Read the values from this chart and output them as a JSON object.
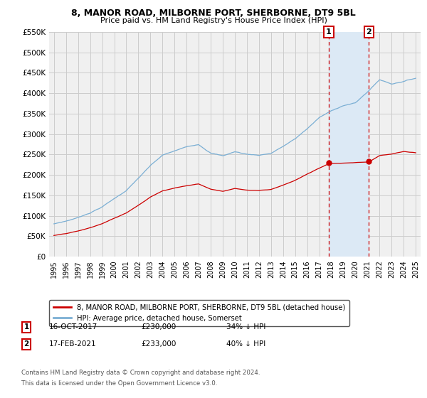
{
  "title": "8, MANOR ROAD, MILBORNE PORT, SHERBORNE, DT9 5BL",
  "subtitle": "Price paid vs. HM Land Registry's House Price Index (HPI)",
  "ylim": [
    0,
    550000
  ],
  "yticks": [
    0,
    50000,
    100000,
    150000,
    200000,
    250000,
    300000,
    350000,
    400000,
    450000,
    500000,
    550000
  ],
  "ytick_labels": [
    "£0",
    "£50K",
    "£100K",
    "£150K",
    "£200K",
    "£250K",
    "£300K",
    "£350K",
    "£400K",
    "£450K",
    "£500K",
    "£550K"
  ],
  "hpi_color": "#7bafd4",
  "price_color": "#cc0000",
  "shade_color": "#dce9f5",
  "sale1_year": 2017.79,
  "sale1_price": 230000,
  "sale2_year": 2021.12,
  "sale2_price": 233000,
  "sale1_date": "16-OCT-2017",
  "sale1_hpi_pct": "34% ↓ HPI",
  "sale2_date": "17-FEB-2021",
  "sale2_hpi_pct": "40% ↓ HPI",
  "legend_line1": "8, MANOR ROAD, MILBORNE PORT, SHERBORNE, DT9 5BL (detached house)",
  "legend_line2": "HPI: Average price, detached house, Somerset",
  "footnote1": "Contains HM Land Registry data © Crown copyright and database right 2024.",
  "footnote2": "This data is licensed under the Open Government Licence v3.0.",
  "background_color": "#ffffff",
  "grid_color": "#cccccc",
  "face_color": "#f0f0f0"
}
